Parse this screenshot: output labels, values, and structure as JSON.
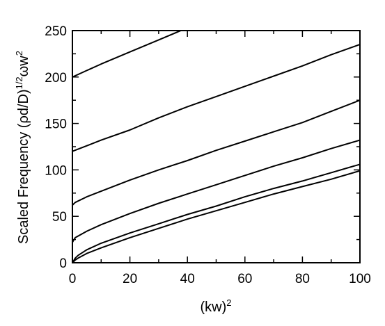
{
  "chart_data": {
    "type": "line",
    "title": "",
    "xlabel": {
      "base": "(kw)",
      "sup": "2"
    },
    "ylabel": {
      "base": "Scaled Frequency (ρd/D)",
      "sup1": "1/2",
      "mid": "ωw",
      "sup2": "2"
    },
    "xlim": [
      0,
      100
    ],
    "ylim": [
      0,
      250
    ],
    "x_ticks": [
      {
        "value": 0,
        "label": "0"
      },
      {
        "value": 20,
        "label": "20"
      },
      {
        "value": 40,
        "label": "40"
      },
      {
        "value": 60,
        "label": "60"
      },
      {
        "value": 80,
        "label": "80"
      },
      {
        "value": 100,
        "label": "100"
      }
    ],
    "y_ticks": [
      {
        "value": 0,
        "label": "0"
      },
      {
        "value": 50,
        "label": "50"
      },
      {
        "value": 100,
        "label": "100"
      },
      {
        "value": 150,
        "label": "150"
      },
      {
        "value": 200,
        "label": "200"
      },
      {
        "value": 250,
        "label": "250"
      }
    ],
    "x_minor_step": 10,
    "y_minor_step": 25,
    "grid": false,
    "series": [
      {
        "x": [
          0,
          1,
          2,
          5,
          10,
          20,
          30,
          40,
          50,
          60,
          70,
          80,
          90,
          100
        ],
        "y": [
          0,
          3,
          5,
          10,
          16,
          27,
          37,
          47,
          56,
          65,
          74,
          82,
          90,
          99
        ]
      },
      {
        "x": [
          0,
          1,
          2,
          5,
          10,
          20,
          30,
          40,
          50,
          60,
          70,
          80,
          90,
          100
        ],
        "y": [
          0,
          5,
          8,
          14,
          21,
          32,
          42,
          52,
          61,
          71,
          80,
          88,
          97,
          106
        ]
      },
      {
        "x": [
          0,
          1,
          5,
          10,
          20,
          30,
          40,
          50,
          60,
          70,
          80,
          90,
          100
        ],
        "y": [
          22,
          27,
          34,
          41,
          53,
          64,
          74,
          84,
          94,
          104,
          113,
          123,
          132
        ]
      },
      {
        "x": [
          0,
          1,
          5,
          10,
          20,
          30,
          40,
          50,
          60,
          70,
          80,
          90,
          100
        ],
        "y": [
          62,
          65,
          71,
          77,
          89,
          100,
          110,
          121,
          131,
          141,
          151,
          163,
          175
        ]
      },
      {
        "x": [
          0,
          5,
          10,
          20,
          30,
          40,
          50,
          60,
          70,
          80,
          90,
          100
        ],
        "y": [
          120,
          126,
          132,
          143,
          156,
          168,
          179,
          190,
          201,
          212,
          224,
          235
        ]
      },
      {
        "x": [
          0,
          5,
          10,
          20,
          30,
          40
        ],
        "y": [
          200,
          207,
          214,
          227,
          240,
          253
        ]
      }
    ]
  }
}
